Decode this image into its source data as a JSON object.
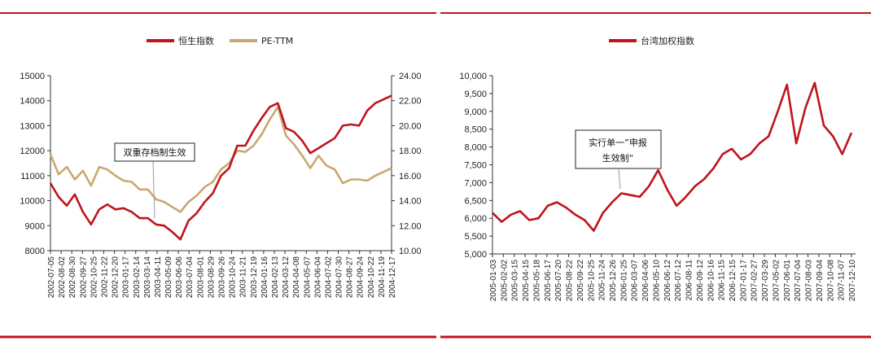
{
  "colors": {
    "hsi": "#c0141c",
    "pe": "#c9a870",
    "taiex": "#c0141c",
    "frame": "#c0141c"
  },
  "chart_data": [
    {
      "type": "line",
      "title": "",
      "legend": [
        "恒生指数",
        "PE-TTM"
      ],
      "legend_position": "top-center",
      "grid": false,
      "x_ticks": [
        "2002-07-05",
        "2002-08-02",
        "2002-08-30",
        "2002-09-27",
        "2002-10-25",
        "2002-11-22",
        "2002-12-20",
        "2003-01-17",
        "2003-02-14",
        "2003-03-14",
        "2003-04-11",
        "2003-05-09",
        "2003-06-06",
        "2003-07-04",
        "2003-08-01",
        "2003-08-29",
        "2003-09-26",
        "2003-10-24",
        "2003-11-21",
        "2003-12-19",
        "2004-01-16",
        "2004-02-13",
        "2004-03-12",
        "2004-04-08",
        "2004-05-07",
        "2004-06-04",
        "2004-07-02",
        "2004-07-30",
        "2004-08-27",
        "2004-09-24",
        "2004-10-22",
        "2004-11-19",
        "2004-12-17"
      ],
      "y_left": {
        "ticks": [
          "8000",
          "9000",
          "10000",
          "11000",
          "12000",
          "13000",
          "14000",
          "15000"
        ],
        "ylim": [
          8000,
          15000
        ]
      },
      "y_right": {
        "ticks": [
          "10.00",
          "12.00",
          "14.00",
          "16.00",
          "18.00",
          "20.00",
          "22.00",
          "24.00"
        ],
        "ylim": [
          10,
          24
        ]
      },
      "series": [
        {
          "name": "恒生指数",
          "axis": "left",
          "values": [
            10700,
            10150,
            9800,
            10250,
            9550,
            9050,
            9650,
            9850,
            9650,
            9700,
            9550,
            9300,
            9300,
            9050,
            9000,
            8750,
            8450,
            9200,
            9500,
            9950,
            10300,
            11000,
            11300,
            12200,
            12200,
            12800,
            13300,
            13750,
            13900,
            12900,
            12750,
            12400,
            11900,
            12100,
            12300,
            12500,
            13000,
            13050,
            13000,
            13600,
            13900,
            14050,
            14200
          ]
        },
        {
          "name": "PE-TTM",
          "axis": "right",
          "values": [
            17.7,
            16.1,
            16.7,
            15.7,
            16.4,
            15.2,
            16.7,
            16.5,
            16.0,
            15.6,
            15.5,
            14.9,
            14.9,
            14.1,
            13.9,
            13.5,
            13.1,
            13.9,
            14.4,
            15.1,
            15.5,
            16.5,
            17.0,
            18.0,
            17.9,
            18.4,
            19.3,
            20.5,
            21.5,
            19.2,
            18.5,
            17.6,
            16.6,
            17.6,
            16.8,
            16.5,
            15.4,
            15.7,
            15.7,
            15.6,
            16.0,
            16.3,
            16.6
          ]
        }
      ],
      "annotation": "双重存档制生效"
    },
    {
      "type": "line",
      "title": "",
      "legend": [
        "台湾加权指数"
      ],
      "legend_position": "top-center",
      "grid": false,
      "x_ticks": [
        "2005-01-03",
        "2005-02-02",
        "2005-03-15",
        "2005-04-15",
        "2005-05-18",
        "2005-06-17",
        "2005-07-20",
        "2005-08-22",
        "2005-09-22",
        "2005-10-25",
        "2005-11-24",
        "2005-12-26",
        "2006-01-25",
        "2006-03-07",
        "2006-04-06",
        "2006-05-10",
        "2006-06-12",
        "2006-07-12",
        "2006-08-11",
        "2006-09-12",
        "2006-10-16",
        "2006-11-15",
        "2006-12-15",
        "2007-01-17",
        "2007-02-27",
        "2007-03-29",
        "2007-05-02",
        "2007-06-01",
        "2007-07-04",
        "2007-08-03",
        "2007-09-04",
        "2007-10-08",
        "2007-11-07",
        "2007-12-10"
      ],
      "y_left": {
        "ticks": [
          "5,000",
          "5,500",
          "6,000",
          "6,500",
          "7,000",
          "7,500",
          "8,000",
          "8,500",
          "9,000",
          "9,500",
          "10,000"
        ],
        "ylim": [
          5000,
          10000
        ]
      },
      "series": [
        {
          "name": "台湾加权指数",
          "axis": "left",
          "values": [
            6150,
            5900,
            6100,
            6200,
            5950,
            6000,
            6350,
            6450,
            6300,
            6100,
            5950,
            5650,
            6150,
            6450,
            6700,
            6650,
            6600,
            6900,
            7350,
            6800,
            6350,
            6600,
            6900,
            7100,
            7400,
            7800,
            7950,
            7650,
            7800,
            8100,
            8300,
            9000,
            9750,
            8100,
            9100,
            9800,
            8600,
            8300,
            7800,
            8400
          ]
        }
      ],
      "annotation_lines": [
        "实行单一”申报",
        "生效制“"
      ]
    }
  ]
}
